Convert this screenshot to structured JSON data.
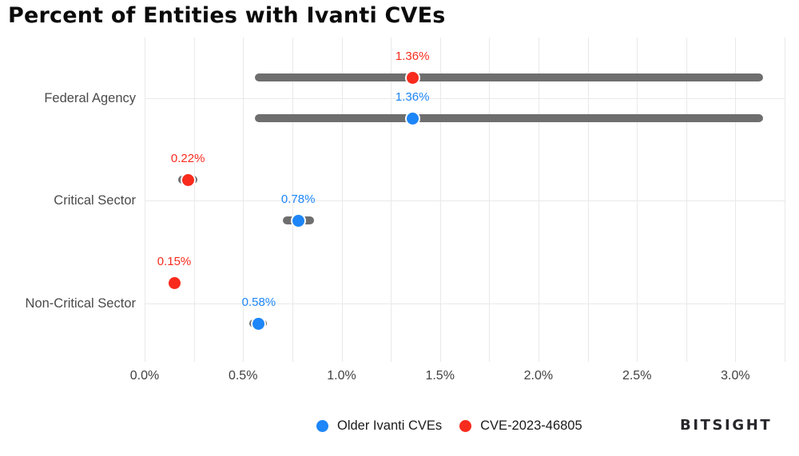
{
  "title": "Percent of Entities with Ivanti CVEs",
  "logo_text": "BITSIGHT",
  "legend": {
    "items": [
      {
        "label": "Older Ivanti CVEs",
        "color": "#1d86f8"
      },
      {
        "label": "CVE-2023-46805",
        "color": "#f82b1d"
      }
    ]
  },
  "colors": {
    "range_bar": "#6e6e6e",
    "gridline": "#e9e9e9",
    "axis_text": "#414141",
    "category_text": "#4a4a4a"
  },
  "chart_data": {
    "type": "scatter",
    "subtype": "dot-with-range-bars",
    "title": "Percent of Entities with Ivanti CVEs",
    "categories": [
      "Federal Agency",
      "Critical Sector",
      "Non-Critical Sector"
    ],
    "series": [
      {
        "name": "CVE-2023-46805",
        "color": "#f82b1d",
        "values": [
          1.36,
          0.22,
          0.15
        ],
        "value_labels": [
          "1.36%",
          "0.22%",
          "0.15%"
        ],
        "ranges": [
          [
            0.56,
            3.14
          ],
          [
            0.17,
            0.27
          ],
          null
        ]
      },
      {
        "name": "Older Ivanti CVEs",
        "color": "#1d86f8",
        "values": [
          1.36,
          0.78,
          0.58
        ],
        "value_labels": [
          "1.36%",
          "0.78%",
          "0.58%"
        ],
        "ranges": [
          [
            0.56,
            3.14
          ],
          [
            0.7,
            0.86
          ],
          [
            0.53,
            0.62
          ]
        ]
      }
    ],
    "row_order_per_category": [
      "CVE-2023-46805",
      "Older Ivanti CVEs"
    ],
    "x_tick_labels": [
      "0.0%",
      "0.5%",
      "1.0%",
      "1.5%",
      "2.0%",
      "2.5%",
      "3.0%"
    ],
    "x_tick_values": [
      0,
      0.5,
      1.0,
      1.5,
      2.0,
      2.5,
      3.0
    ],
    "xlim": [
      0,
      3.25
    ],
    "grid": {
      "vertical_step": 0.25,
      "horizontal": "at-category-centers"
    },
    "legend_position": "bottom-center",
    "range_bar_color": "#6e6e6e"
  }
}
